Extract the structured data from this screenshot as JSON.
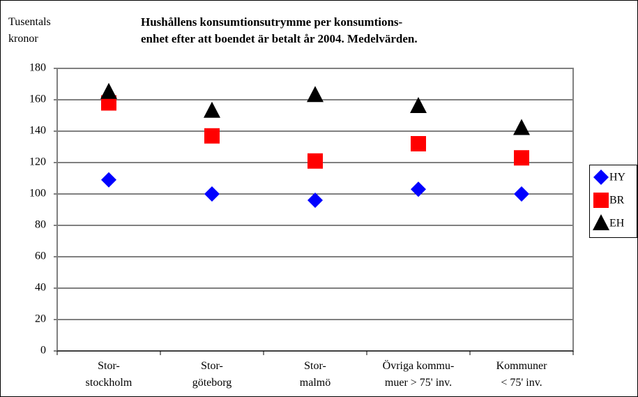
{
  "chart_data": {
    "type": "scatter",
    "title": "Hushållens konsumtionsutrymme per konsumtions-\nenhet efter att boendet är betalt år 2004. Medelvärden.",
    "y_label": "Tusentals\nkronor",
    "categories": [
      "Stor-\nstockholm",
      "Stor-\ngöteborg",
      "Stor-\nmalmö",
      "Övriga kommu-\nmuer  > 75' inv.",
      "Kommuner\n< 75' inv."
    ],
    "series": [
      {
        "name": "HY",
        "color": "#0000ff",
        "marker": "diamond",
        "values": [
          109,
          100,
          96,
          103,
          100
        ]
      },
      {
        "name": "BR",
        "color": "#ff0000",
        "marker": "square",
        "values": [
          158,
          137,
          121,
          132,
          123
        ]
      },
      {
        "name": "EH",
        "color": "#000000",
        "marker": "triangle",
        "values": [
          165,
          153,
          163,
          156,
          142
        ]
      }
    ],
    "ylim": [
      0,
      180
    ],
    "yticks": [
      0,
      20,
      40,
      60,
      80,
      100,
      120,
      140,
      160,
      180
    ],
    "grid": true,
    "legend": "right"
  }
}
